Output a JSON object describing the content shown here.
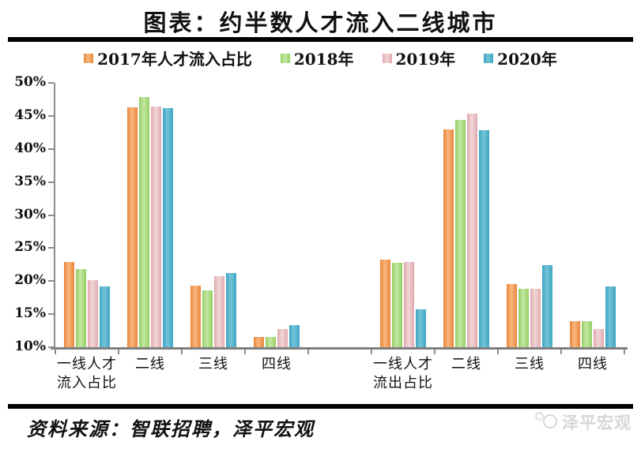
{
  "chart_data": {
    "type": "bar",
    "title": "图表：约半数人才流入二线城市",
    "xlabel": "",
    "ylabel": "",
    "ylim": [
      10,
      50
    ],
    "ytick_step": 5,
    "ytick_labels": [
      "50%",
      "45%",
      "40%",
      "35%",
      "30%",
      "25%",
      "20%",
      "15%",
      "10%"
    ],
    "grid": false,
    "legend_position": "top",
    "axis_color": "#8c8c8c",
    "series": [
      {
        "name": "2017年人才流入占比",
        "color": "#e8863a",
        "color_light": "#f9b77e"
      },
      {
        "name": "2018年",
        "color": "#94ce62",
        "color_light": "#c5e7a4"
      },
      {
        "name": "2019年",
        "color": "#dfa9ae",
        "color_light": "#f2d6d8"
      },
      {
        "name": "2020年",
        "color": "#3fa5c2",
        "color_light": "#74c3d8"
      }
    ],
    "categories": [
      {
        "label": "一线人才\n流入占比",
        "values": [
          22.9,
          21.8,
          20.2,
          19.2
        ]
      },
      {
        "label": "二线",
        "values": [
          46.3,
          47.9,
          46.4,
          46.2
        ]
      },
      {
        "label": "三线",
        "values": [
          19.3,
          18.6,
          20.7,
          21.2
        ]
      },
      {
        "label": "四线",
        "values": [
          11.6,
          11.6,
          12.7,
          13.4
        ]
      },
      {
        "label": "",
        "spacer": true,
        "values": []
      },
      {
        "label": "一线人才\n流出占比",
        "values": [
          23.3,
          22.8,
          22.9,
          15.7
        ]
      },
      {
        "label": "二线",
        "values": [
          43.0,
          44.4,
          45.4,
          42.8
        ]
      },
      {
        "label": "三线",
        "values": [
          19.5,
          18.9,
          18.9,
          22.4
        ]
      },
      {
        "label": "四线",
        "values": [
          14.0,
          13.9,
          12.8,
          19.2
        ]
      }
    ]
  },
  "footer": {
    "source": "资料来源：智联招聘，泽平宏观",
    "logo_text": "泽平宏观"
  }
}
